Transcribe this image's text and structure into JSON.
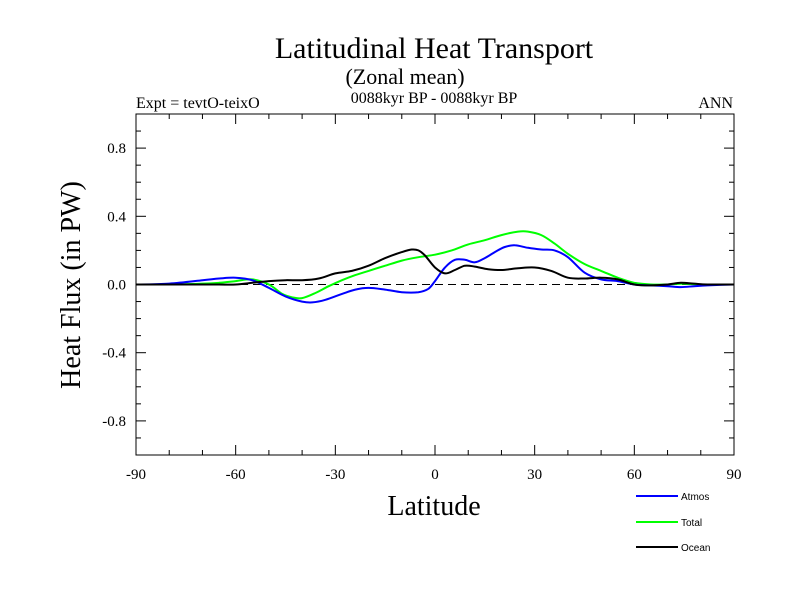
{
  "chart_data": {
    "type": "line",
    "title": "Latitudinal Heat Transport",
    "subtitle": "(Zonal mean)",
    "period": "0088kyr BP - 0088kyr BP",
    "experiment": "Expt = tevtO-teixO",
    "season": "ANN",
    "xlabel": "Latitude",
    "ylabel": "Heat Flux (in PW)",
    "xlim": [
      -90,
      90
    ],
    "ylim": [
      -1.0,
      1.0
    ],
    "xticks": [
      -90,
      -60,
      -30,
      0,
      30,
      60,
      90
    ],
    "xtick_labels": [
      "-90",
      "-60",
      "-30",
      "0",
      "30",
      "60",
      "90"
    ],
    "yticks": [
      0.8,
      0.4,
      0.0,
      -0.4,
      -0.8
    ],
    "ytick_labels": [
      "0.8",
      "0.4",
      "0.0",
      "-0.4",
      "-0.8"
    ],
    "zero_line": "dashed",
    "grid": false,
    "legend_position": "bottom-right",
    "series": [
      {
        "name": "Atmos",
        "color": "#0000ff",
        "x": [
          -90,
          -80,
          -70,
          -65,
          -60,
          -55,
          -50,
          -45,
          -40,
          -37,
          -33,
          -28,
          -24,
          -20,
          -15,
          -10,
          -5,
          -2,
          0,
          3,
          6,
          9,
          12,
          15,
          18,
          21,
          24,
          28,
          32,
          36,
          40,
          45,
          50,
          55,
          60,
          65,
          70,
          74,
          78,
          82,
          90
        ],
        "y": [
          0.0,
          0.005,
          0.025,
          0.035,
          0.04,
          0.025,
          -0.02,
          -0.07,
          -0.1,
          -0.105,
          -0.09,
          -0.055,
          -0.03,
          -0.02,
          -0.03,
          -0.045,
          -0.045,
          -0.025,
          0.02,
          0.1,
          0.145,
          0.145,
          0.13,
          0.155,
          0.19,
          0.22,
          0.23,
          0.215,
          0.205,
          0.2,
          0.16,
          0.07,
          0.03,
          0.02,
          0.0,
          -0.005,
          -0.01,
          -0.015,
          -0.01,
          -0.005,
          0.0
        ]
      },
      {
        "name": "Total",
        "color": "#00ff00",
        "x": [
          -90,
          -80,
          -70,
          -65,
          -60,
          -55,
          -50,
          -46,
          -43,
          -40,
          -36,
          -32,
          -28,
          -24,
          -20,
          -15,
          -10,
          -5,
          0,
          5,
          10,
          15,
          20,
          25,
          28,
          32,
          36,
          40,
          45,
          50,
          55,
          60,
          65,
          70,
          75,
          80,
          90
        ],
        "y": [
          0.0,
          0.0,
          0.005,
          0.01,
          0.02,
          0.03,
          0.0,
          -0.055,
          -0.075,
          -0.08,
          -0.05,
          -0.01,
          0.025,
          0.055,
          0.08,
          0.11,
          0.14,
          0.16,
          0.175,
          0.2,
          0.235,
          0.26,
          0.29,
          0.31,
          0.31,
          0.29,
          0.24,
          0.18,
          0.12,
          0.08,
          0.04,
          0.01,
          0.0,
          0.0,
          0.005,
          0.0,
          0.0
        ]
      },
      {
        "name": "Ocean",
        "color": "#000000",
        "x": [
          -90,
          -80,
          -70,
          -65,
          -60,
          -55,
          -50,
          -45,
          -40,
          -35,
          -30,
          -25,
          -20,
          -15,
          -10,
          -7,
          -5,
          -3,
          0,
          3,
          6,
          9,
          12,
          16,
          20,
          25,
          30,
          35,
          40,
          45,
          50,
          55,
          60,
          65,
          70,
          74,
          78,
          82,
          90
        ],
        "y": [
          0.0,
          0.0,
          0.0,
          0.0,
          0.0,
          0.01,
          0.02,
          0.025,
          0.025,
          0.035,
          0.065,
          0.08,
          0.11,
          0.155,
          0.19,
          0.205,
          0.2,
          0.17,
          0.1,
          0.065,
          0.085,
          0.11,
          0.105,
          0.09,
          0.085,
          0.095,
          0.1,
          0.08,
          0.04,
          0.035,
          0.04,
          0.03,
          0.0,
          -0.005,
          0.0,
          0.01,
          0.005,
          0.0,
          0.0
        ]
      }
    ]
  }
}
